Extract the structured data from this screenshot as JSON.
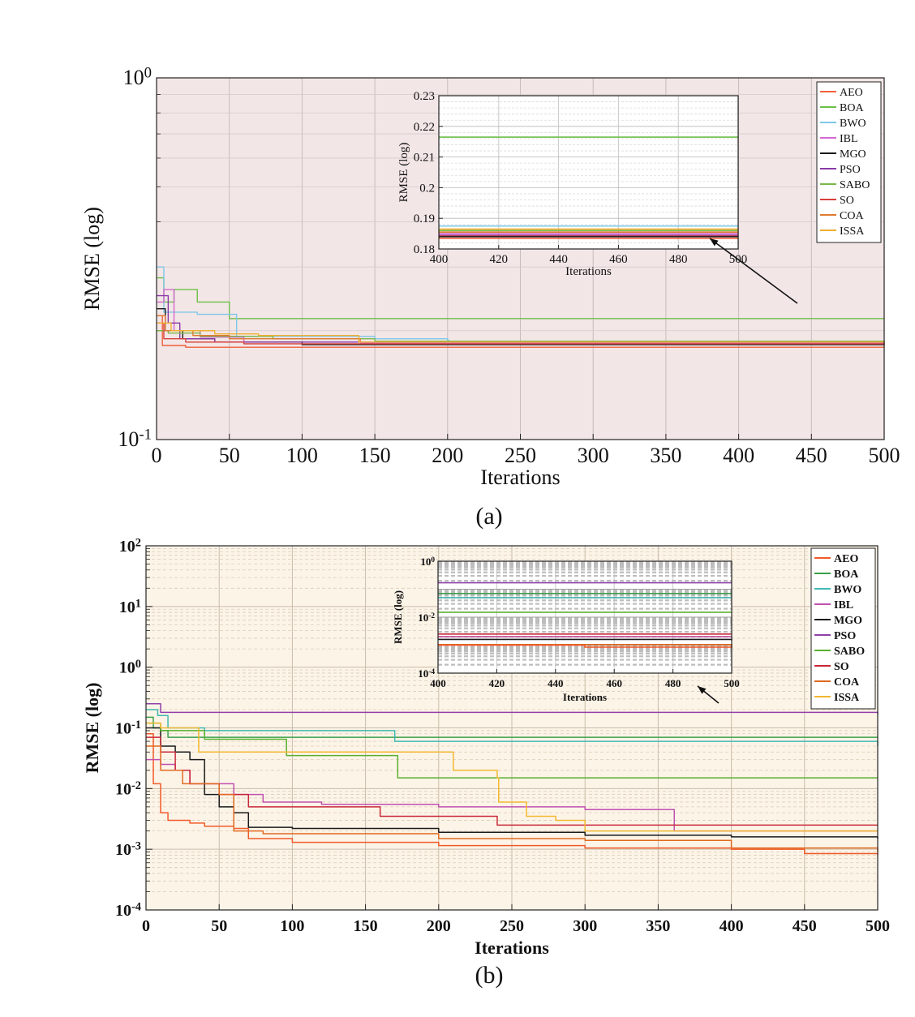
{
  "chart_data": [
    {
      "panel_label": "(a)",
      "type": "line",
      "xlabel": "Iterations",
      "ylabel": "RMSE (log)",
      "xlim": [
        0,
        500
      ],
      "yscale": "log",
      "ylim": [
        0.1,
        1
      ],
      "xticks": [
        "0",
        "50",
        "100",
        "150",
        "200",
        "250",
        "300",
        "350",
        "400",
        "450",
        "500"
      ],
      "yticks": [
        {
          "base": "10",
          "exp": "0"
        },
        {
          "base": "10",
          "exp": "-1"
        }
      ],
      "grid": true,
      "legend_position": "top-right",
      "zoom_box": {
        "x": [
          400,
          500
        ],
        "y": [
          0.165,
          0.23
        ]
      },
      "series": [
        {
          "name": "AEO",
          "color": "#f0603a",
          "points": [
            [
              0,
              0.22
            ],
            [
              4,
              0.182
            ],
            [
              20,
              0.18
            ],
            [
              500,
              0.181
            ]
          ]
        },
        {
          "name": "BOA",
          "color": "#6cbf4a",
          "points": [
            [
              0,
              0.28
            ],
            [
              5,
              0.24
            ],
            [
              12,
              0.26
            ],
            [
              28,
              0.24
            ],
            [
              50,
              0.216
            ],
            [
              500,
              0.216
            ]
          ]
        },
        {
          "name": "BWO",
          "color": "#7ec8e8",
          "points": [
            [
              0,
              0.3
            ],
            [
              5,
              0.225
            ],
            [
              22,
              0.225
            ],
            [
              28,
              0.222
            ],
            [
              50,
              0.222
            ],
            [
              55,
              0.193
            ],
            [
              150,
              0.19
            ],
            [
              200,
              0.188
            ],
            [
              201,
              0.186
            ],
            [
              500,
              0.186
            ]
          ]
        },
        {
          "name": "IBL",
          "color": "#d46ad0",
          "points": [
            [
              0,
              0.24
            ],
            [
              5,
              0.26
            ],
            [
              12,
              0.2
            ],
            [
              30,
              0.192
            ],
            [
              60,
              0.186
            ],
            [
              140,
              0.185
            ],
            [
              500,
              0.184
            ]
          ]
        },
        {
          "name": "MGO",
          "color": "#1a1a1a",
          "points": [
            [
              0,
              0.23
            ],
            [
              6,
              0.2
            ],
            [
              18,
              0.19
            ],
            [
              40,
              0.186
            ],
            [
              100,
              0.183
            ],
            [
              500,
              0.182
            ]
          ]
        },
        {
          "name": "PSO",
          "color": "#8a3aa8",
          "points": [
            [
              0,
              0.25
            ],
            [
              8,
              0.21
            ],
            [
              16,
              0.19
            ],
            [
              40,
              0.186
            ],
            [
              500,
              0.184
            ]
          ]
        },
        {
          "name": "SABO",
          "color": "#7ab84a",
          "points": [
            [
              0,
              0.2
            ],
            [
              8,
              0.197
            ],
            [
              30,
              0.193
            ],
            [
              80,
              0.19
            ],
            [
              150,
              0.187
            ],
            [
              500,
              0.185
            ]
          ]
        },
        {
          "name": "SO",
          "color": "#d8403a",
          "points": [
            [
              0,
              0.21
            ],
            [
              5,
              0.19
            ],
            [
              20,
              0.186
            ],
            [
              60,
              0.184
            ],
            [
              500,
              0.183
            ]
          ]
        },
        {
          "name": "COA",
          "color": "#e07a32",
          "points": [
            [
              0,
              0.22
            ],
            [
              6,
              0.2
            ],
            [
              25,
              0.194
            ],
            [
              50,
              0.19
            ],
            [
              140,
              0.186
            ],
            [
              500,
              0.185
            ]
          ]
        },
        {
          "name": "ISSA",
          "color": "#f0b030",
          "points": [
            [
              0,
              0.21
            ],
            [
              10,
              0.2
            ],
            [
              40,
              0.196
            ],
            [
              70,
              0.194
            ],
            [
              138,
              0.194
            ],
            [
              139,
              0.186
            ],
            [
              500,
              0.186
            ]
          ]
        }
      ],
      "inset": {
        "xlabel": "Iterations",
        "ylabel": "RMSE (log)",
        "xlim": [
          400,
          500
        ],
        "ylim": [
          0.18,
          0.23
        ],
        "xticks": [
          "400",
          "420",
          "440",
          "460",
          "480",
          "500"
        ],
        "yticks": [
          "0.18",
          "0.19",
          "0.2",
          "0.21",
          "0.22",
          "0.23"
        ],
        "series": [
          {
            "name": "BOA",
            "color": "#6cbf4a",
            "y": 0.2165
          },
          {
            "name": "BWO",
            "color": "#7ec8e8",
            "y": 0.1875
          },
          {
            "name": "ISSA",
            "color": "#f0b030",
            "y": 0.1865
          },
          {
            "name": "SABO",
            "color": "#7ab84a",
            "y": 0.186
          },
          {
            "name": "COA",
            "color": "#e07a32",
            "y": 0.1855
          },
          {
            "name": "IBL",
            "color": "#d46ad0",
            "y": 0.185
          },
          {
            "name": "PSO",
            "color": "#8a3aa8",
            "y": 0.1845
          },
          {
            "name": "SO",
            "color": "#d8403a",
            "y": 0.1842
          },
          {
            "name": "MGO",
            "color": "#1a1a1a",
            "y": 0.184
          },
          {
            "name": "AEO",
            "color": "#f0603a",
            "y": 0.1835
          }
        ]
      }
    },
    {
      "panel_label": "(b)",
      "type": "line",
      "xlabel": "Iterations",
      "ylabel": "RMSE (log)",
      "xlim": [
        0,
        500
      ],
      "yscale": "log",
      "ylim": [
        0.0001,
        100
      ],
      "xticks": [
        "0",
        "50",
        "100",
        "150",
        "200",
        "250",
        "300",
        "350",
        "400",
        "450",
        "500"
      ],
      "yticks": [
        {
          "base": "10",
          "exp": "2"
        },
        {
          "base": "10",
          "exp": "1"
        },
        {
          "base": "10",
          "exp": "0"
        },
        {
          "base": "10",
          "exp": "-1"
        },
        {
          "base": "10",
          "exp": "-2"
        },
        {
          "base": "10",
          "exp": "-3"
        },
        {
          "base": "10",
          "exp": "-4"
        }
      ],
      "grid": true,
      "legend_position": "top-right",
      "zoom_box": {
        "x": [
          400,
          500
        ],
        "y": [
          0.00055,
          0.22
        ]
      },
      "series": [
        {
          "name": "AEO",
          "color": "#f05a28",
          "points": [
            [
              0,
              0.08
            ],
            [
              5,
              0.012
            ],
            [
              10,
              0.004
            ],
            [
              15,
              0.003
            ],
            [
              30,
              0.0027
            ],
            [
              40,
              0.0024
            ],
            [
              60,
              0.0022
            ],
            [
              70,
              0.0015
            ],
            [
              100,
              0.0013
            ],
            [
              200,
              0.00115
            ],
            [
              300,
              0.00105
            ],
            [
              400,
              0.001
            ],
            [
              450,
              0.00085
            ],
            [
              500,
              0.0008
            ]
          ]
        },
        {
          "name": "BOA",
          "color": "#3aa04a",
          "points": [
            [
              0,
              0.15
            ],
            [
              5,
              0.1
            ],
            [
              10,
              0.09
            ],
            [
              15,
              0.07
            ],
            [
              500,
              0.07
            ]
          ]
        },
        {
          "name": "BWO",
          "color": "#40b8b0",
          "points": [
            [
              0,
              0.2
            ],
            [
              8,
              0.16
            ],
            [
              15,
              0.1
            ],
            [
              40,
              0.09
            ],
            [
              120,
              0.09
            ],
            [
              170,
              0.06
            ],
            [
              500,
              0.05
            ]
          ]
        },
        {
          "name": "IBL",
          "color": "#c050b0",
          "points": [
            [
              0,
              0.03
            ],
            [
              10,
              0.025
            ],
            [
              20,
              0.02
            ],
            [
              30,
              0.012
            ],
            [
              60,
              0.008
            ],
            [
              80,
              0.006
            ],
            [
              100,
              0.006
            ],
            [
              120,
              0.0055
            ],
            [
              200,
              0.005
            ],
            [
              300,
              0.0045
            ],
            [
              360,
              0.0045
            ],
            [
              361,
              0.002
            ],
            [
              500,
              0.002
            ]
          ]
        },
        {
          "name": "MGO",
          "color": "#1a1a1a",
          "points": [
            [
              0,
              0.1
            ],
            [
              10,
              0.05
            ],
            [
              20,
              0.04
            ],
            [
              30,
              0.03
            ],
            [
              40,
              0.008
            ],
            [
              50,
              0.005
            ],
            [
              60,
              0.004
            ],
            [
              70,
              0.0023
            ],
            [
              100,
              0.0022
            ],
            [
              200,
              0.0019
            ],
            [
              300,
              0.0017
            ],
            [
              400,
              0.0016
            ],
            [
              500,
              0.0015
            ]
          ]
        },
        {
          "name": "PSO",
          "color": "#9040a8",
          "points": [
            [
              0,
              0.25
            ],
            [
              10,
              0.18
            ],
            [
              500,
              0.17
            ]
          ]
        },
        {
          "name": "SABO",
          "color": "#58b030",
          "points": [
            [
              0,
              0.12
            ],
            [
              10,
              0.09
            ],
            [
              40,
              0.065
            ],
            [
              95,
              0.065
            ],
            [
              96,
              0.035
            ],
            [
              170,
              0.035
            ],
            [
              172,
              0.015
            ],
            [
              500,
              0.015
            ]
          ]
        },
        {
          "name": "SO",
          "color": "#c82838",
          "points": [
            [
              0,
              0.07
            ],
            [
              10,
              0.04
            ],
            [
              20,
              0.02
            ],
            [
              30,
              0.012
            ],
            [
              50,
              0.008
            ],
            [
              70,
              0.005
            ],
            [
              150,
              0.005
            ],
            [
              160,
              0.0035
            ],
            [
              240,
              0.0025
            ],
            [
              500,
              0.0025
            ]
          ]
        },
        {
          "name": "COA",
          "color": "#e06a20",
          "points": [
            [
              0,
              0.05
            ],
            [
              10,
              0.02
            ],
            [
              25,
              0.012
            ],
            [
              50,
              0.008
            ],
            [
              60,
              0.002
            ],
            [
              80,
              0.0018
            ],
            [
              200,
              0.0015
            ],
            [
              300,
              0.0014
            ],
            [
              400,
              0.00105
            ],
            [
              500,
              0.0009
            ]
          ]
        },
        {
          "name": "ISSA",
          "color": "#f2b830",
          "points": [
            [
              0,
              0.12
            ],
            [
              10,
              0.1
            ],
            [
              35,
              0.1
            ],
            [
              36,
              0.04
            ],
            [
              200,
              0.04
            ],
            [
              210,
              0.02
            ],
            [
              240,
              0.015
            ],
            [
              241,
              0.006
            ],
            [
              260,
              0.0035
            ],
            [
              280,
              0.003
            ],
            [
              300,
              0.002
            ],
            [
              500,
              0.002
            ]
          ]
        }
      ],
      "inset": {
        "xlabel": "Iterations",
        "ylabel": "RMSE (log)",
        "xlim": [
          400,
          500
        ],
        "ylim": [
          0.0001,
          1
        ],
        "xticks": [
          "400",
          "420",
          "440",
          "460",
          "480",
          "500"
        ],
        "yticks": [
          {
            "base": "10",
            "exp": "0"
          },
          {
            "base": "10",
            "exp": "-2"
          },
          {
            "base": "10",
            "exp": "-4"
          }
        ],
        "series": [
          {
            "name": "PSO",
            "color": "#9040a8",
            "points": [
              [
                400,
                0.17
              ],
              [
                500,
                0.17
              ]
            ]
          },
          {
            "name": "BOA",
            "color": "#3aa04a",
            "points": [
              [
                400,
                0.07
              ],
              [
                500,
                0.07
              ]
            ]
          },
          {
            "name": "BWO",
            "color": "#40b8b0",
            "points": [
              [
                400,
                0.05
              ],
              [
                500,
                0.05
              ]
            ]
          },
          {
            "name": "SABO",
            "color": "#58b030",
            "points": [
              [
                400,
                0.015
              ],
              [
                500,
                0.015
              ]
            ]
          },
          {
            "name": "SO",
            "color": "#c82838",
            "points": [
              [
                400,
                0.0025
              ],
              [
                500,
                0.0025
              ]
            ]
          },
          {
            "name": "ISSA",
            "color": "#f2b830",
            "points": [
              [
                400,
                0.002
              ],
              [
                500,
                0.002
              ]
            ]
          },
          {
            "name": "IBL",
            "color": "#c050b0",
            "points": [
              [
                400,
                0.002
              ],
              [
                500,
                0.002
              ]
            ]
          },
          {
            "name": "MGO",
            "color": "#1a1a1a",
            "points": [
              [
                400,
                0.0016
              ],
              [
                500,
                0.0015
              ]
            ]
          },
          {
            "name": "COA",
            "color": "#e06a20",
            "points": [
              [
                400,
                0.00105
              ],
              [
                500,
                0.0009
              ]
            ]
          },
          {
            "name": "AEO",
            "color": "#f05a28",
            "points": [
              [
                400,
                0.001
              ],
              [
                450,
                0.00085
              ],
              [
                500,
                0.0008
              ]
            ]
          }
        ]
      }
    }
  ]
}
